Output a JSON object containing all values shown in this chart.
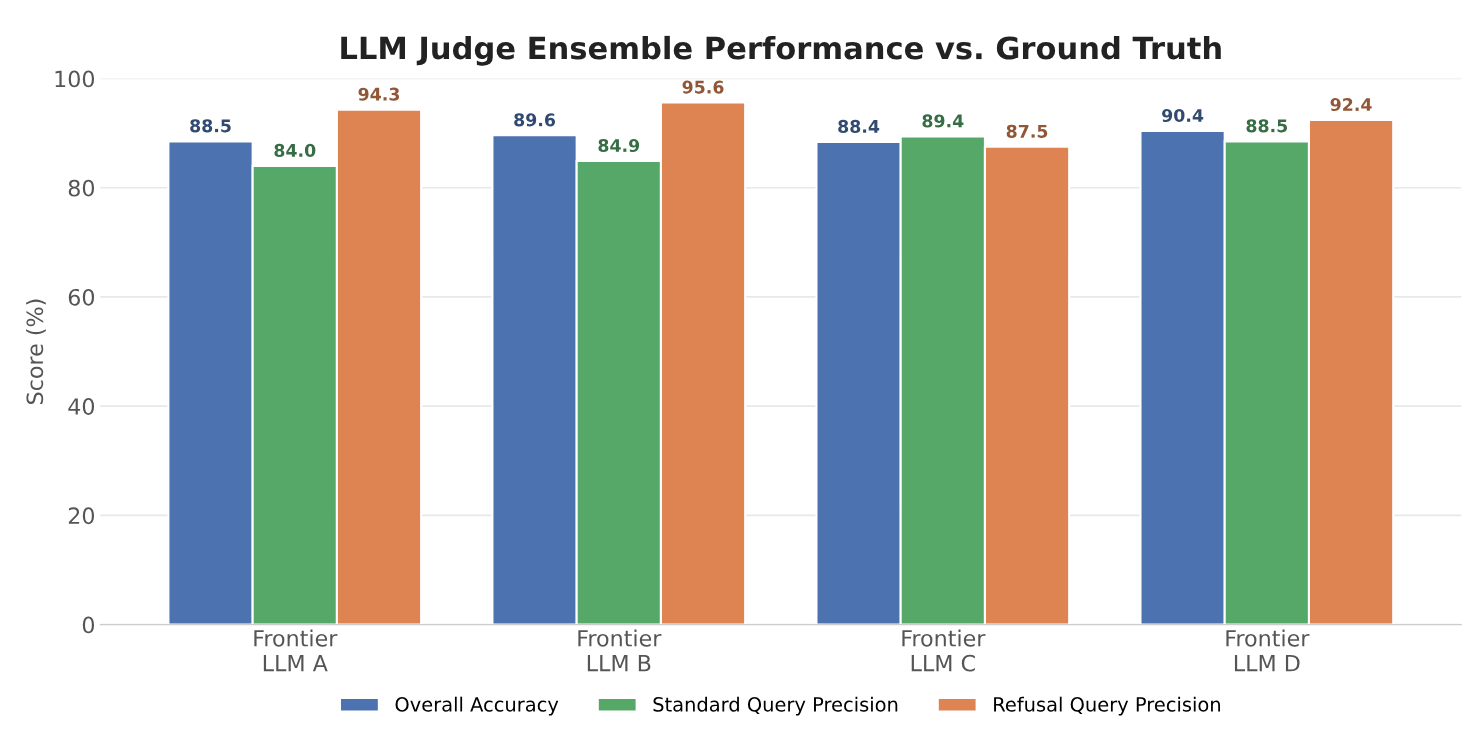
{
  "chart_data": {
    "type": "bar",
    "title": "LLM Judge Ensemble Performance vs. Ground Truth",
    "ylabel": "Score (%)",
    "categories": [
      "Frontier\nLLM A",
      "Frontier\nLLM B",
      "Frontier\nLLM C",
      "Frontier\nLLM D"
    ],
    "series": [
      {
        "name": "Overall Accuracy",
        "color": "#4c72b0",
        "values": [
          88.5,
          89.6,
          88.4,
          90.4
        ],
        "value_labels": [
          "88.5",
          "89.6",
          "88.4",
          "90.4"
        ]
      },
      {
        "name": "Standard Query Precision",
        "color": "#55a868",
        "values": [
          84.0,
          84.9,
          89.4,
          88.5
        ],
        "value_labels": [
          "84.0",
          "84.9",
          "89.4",
          "88.5"
        ]
      },
      {
        "name": "Refusal Query Precision",
        "color": "#dd8452",
        "values": [
          94.3,
          95.6,
          87.5,
          92.4
        ],
        "value_labels": [
          "94.3",
          "95.6",
          "87.5",
          "92.4"
        ]
      }
    ],
    "ylim": [
      0,
      100
    ],
    "yticks": [
      0,
      20,
      40,
      60,
      80,
      100
    ],
    "grid": "y",
    "legend": "bottom"
  }
}
